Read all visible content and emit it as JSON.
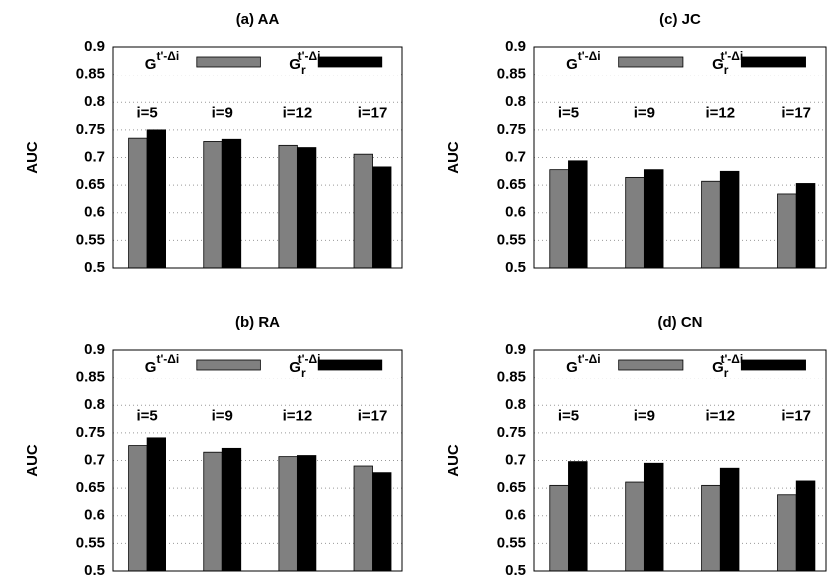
{
  "chart_data": [
    {
      "type": "bar",
      "title": "(a) AA",
      "y_label": "AUC",
      "categories": [
        "i=5",
        "i=9",
        "i=12",
        "i=17"
      ],
      "series": [
        {
          "name": "G",
          "superscript": "t'-Δi",
          "color": "#808080",
          "values": [
            0.735,
            0.729,
            0.722,
            0.706
          ]
        },
        {
          "name": "G",
          "subscript": "r",
          "superscript": "t'-Δi",
          "color": "#000000",
          "values": [
            0.75,
            0.733,
            0.718,
            0.683
          ]
        }
      ],
      "ylim": [
        0.5,
        0.9
      ],
      "yticks": [
        0.5,
        0.55,
        0.6,
        0.65,
        0.7,
        0.75,
        0.8,
        0.85,
        0.9
      ],
      "grid": true
    },
    {
      "type": "bar",
      "title": "(c) JC",
      "y_label": "AUC",
      "categories": [
        "i=5",
        "i=9",
        "i=12",
        "i=17"
      ],
      "series": [
        {
          "name": "G",
          "superscript": "t'-Δi",
          "color": "#808080",
          "values": [
            0.678,
            0.664,
            0.657,
            0.634
          ]
        },
        {
          "name": "G",
          "subscript": "r",
          "superscript": "t'-Δi",
          "color": "#000000",
          "values": [
            0.694,
            0.678,
            0.675,
            0.653
          ]
        }
      ],
      "ylim": [
        0.5,
        0.9
      ],
      "yticks": [
        0.5,
        0.55,
        0.6,
        0.65,
        0.7,
        0.75,
        0.8,
        0.85,
        0.9
      ],
      "grid": true
    },
    {
      "type": "bar",
      "title": "(b) RA",
      "y_label": "AUC",
      "categories": [
        "i=5",
        "i=9",
        "i=12",
        "i=17"
      ],
      "series": [
        {
          "name": "G",
          "superscript": "t'-Δi",
          "color": "#808080",
          "values": [
            0.727,
            0.715,
            0.707,
            0.69
          ]
        },
        {
          "name": "G",
          "subscript": "r",
          "superscript": "t'-Δi",
          "color": "#000000",
          "values": [
            0.741,
            0.722,
            0.709,
            0.678
          ]
        }
      ],
      "ylim": [
        0.5,
        0.9
      ],
      "yticks": [
        0.5,
        0.55,
        0.6,
        0.65,
        0.7,
        0.75,
        0.8,
        0.85,
        0.9
      ],
      "grid": true
    },
    {
      "type": "bar",
      "title": "(d) CN",
      "y_label": "AUC",
      "categories": [
        "i=5",
        "i=9",
        "i=12",
        "i=17"
      ],
      "series": [
        {
          "name": "G",
          "superscript": "t'-Δi",
          "color": "#808080",
          "values": [
            0.655,
            0.661,
            0.655,
            0.638
          ]
        },
        {
          "name": "G",
          "subscript": "r",
          "superscript": "t'-Δi",
          "color": "#000000",
          "values": [
            0.698,
            0.695,
            0.686,
            0.663
          ]
        }
      ],
      "ylim": [
        0.5,
        0.9
      ],
      "yticks": [
        0.5,
        0.55,
        0.6,
        0.65,
        0.7,
        0.75,
        0.8,
        0.85,
        0.9
      ],
      "grid": true
    }
  ]
}
